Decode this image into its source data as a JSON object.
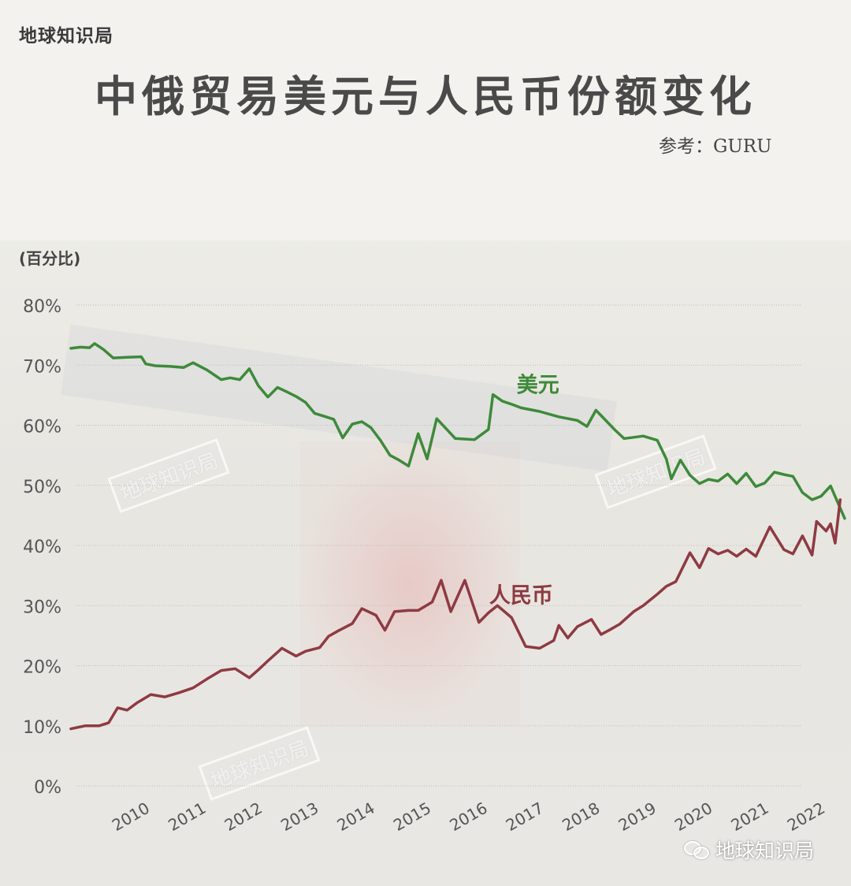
{
  "brand": "地球知识局",
  "title": "中俄贸易美元与人民币份额变化",
  "source": "参考：GURU",
  "watermarks": [
    "地球知识局",
    "地球知识局",
    "地球知识局"
  ],
  "footer_watermark": "地球知识局",
  "colors": {
    "usd": "#3e8a3a",
    "cny": "#8e3a42",
    "axis_text": "#555555",
    "grid": "#bdbdbd"
  },
  "chart_data": {
    "type": "line",
    "ylabel": "(百分比)",
    "ylim": [
      0,
      80
    ],
    "ytick_labels": [
      "0%",
      "10%",
      "20%",
      "30%",
      "40%",
      "50%",
      "60%",
      "70%",
      "80%"
    ],
    "xlim": [
      2009.0,
      2022.75
    ],
    "xtick_labels": [
      "2010",
      "2011",
      "2012",
      "2013",
      "2014",
      "2015",
      "2016",
      "2017",
      "2018",
      "2019",
      "2020",
      "2021",
      "2022"
    ],
    "grid": true,
    "series": [
      {
        "name": "美元",
        "color": "#3e8a3a",
        "x": [
          2009.0,
          2009.17,
          2009.33,
          2009.42,
          2009.58,
          2009.75,
          2010.0,
          2010.25,
          2010.33,
          2010.5,
          2010.75,
          2011.0,
          2011.17,
          2011.42,
          2011.67,
          2011.83,
          2012.0,
          2012.17,
          2012.33,
          2012.5,
          2012.67,
          2012.83,
          2013.0,
          2013.17,
          2013.33,
          2013.5,
          2013.67,
          2013.83,
          2014.0,
          2014.17,
          2014.33,
          2014.5,
          2014.67,
          2014.83,
          2015.0,
          2015.17,
          2015.33,
          2015.5,
          2015.67,
          2015.83,
          2016.17,
          2016.42,
          2016.5,
          2016.67,
          2016.83,
          2017.0,
          2017.33,
          2017.67,
          2018.0,
          2018.17,
          2018.33,
          2018.67,
          2018.83,
          2019.0,
          2019.17,
          2019.42,
          2019.58,
          2019.67,
          2019.83,
          2020.0,
          2020.17,
          2020.33,
          2020.5,
          2020.67,
          2020.83,
          2021.0,
          2021.17,
          2021.33,
          2021.5,
          2021.67,
          2021.83,
          2022.0,
          2022.17,
          2022.33,
          2022.5,
          2022.75
        ],
        "values": [
          72.8,
          73.0,
          72.9,
          73.6,
          72.6,
          71.2,
          71.3,
          71.4,
          70.2,
          69.9,
          69.8,
          69.6,
          70.4,
          69.2,
          67.6,
          67.9,
          67.6,
          69.4,
          66.6,
          64.7,
          66.3,
          65.6,
          64.8,
          63.8,
          62.0,
          61.5,
          61.0,
          57.9,
          60.2,
          60.6,
          59.6,
          57.5,
          55.0,
          54.2,
          53.2,
          58.6,
          54.4,
          61.1,
          59.4,
          57.8,
          57.6,
          59.3,
          65.1,
          64.0,
          63.5,
          62.9,
          62.3,
          61.4,
          60.8,
          59.8,
          62.5,
          59.2,
          57.8,
          58.0,
          58.2,
          57.5,
          54.4,
          51.1,
          54.2,
          51.7,
          50.3,
          51.0,
          50.7,
          51.9,
          50.3,
          52.0,
          49.8,
          50.4,
          52.2,
          51.8,
          51.5,
          48.8,
          47.6,
          48.2,
          49.9,
          44.5
        ]
      },
      {
        "name": "人民币",
        "color": "#8e3a42",
        "x": [
          2009.0,
          2009.25,
          2009.5,
          2009.67,
          2009.83,
          2010.0,
          2010.17,
          2010.42,
          2010.67,
          2010.92,
          2011.17,
          2011.42,
          2011.67,
          2011.92,
          2012.17,
          2012.33,
          2012.5,
          2012.75,
          2013.0,
          2013.17,
          2013.42,
          2013.58,
          2013.75,
          2014.0,
          2014.17,
          2014.42,
          2014.58,
          2014.75,
          2015.0,
          2015.17,
          2015.42,
          2015.58,
          2015.75,
          2016.0,
          2016.25,
          2016.42,
          2016.58,
          2016.83,
          2017.08,
          2017.33,
          2017.58,
          2017.67,
          2017.83,
          2018.0,
          2018.25,
          2018.42,
          2018.58,
          2018.75,
          2019.0,
          2019.17,
          2019.42,
          2019.58,
          2019.75,
          2020.0,
          2020.17,
          2020.33,
          2020.5,
          2020.67,
          2020.83,
          2021.0,
          2021.17,
          2021.42,
          2021.67,
          2021.83,
          2022.0,
          2022.17,
          2022.25,
          2022.42,
          2022.5,
          2022.58,
          2022.67
        ],
        "values": [
          9.5,
          10.0,
          10.0,
          10.5,
          13.0,
          12.6,
          13.8,
          15.2,
          14.8,
          15.5,
          16.3,
          17.8,
          19.2,
          19.5,
          18.0,
          19.3,
          20.8,
          22.9,
          21.6,
          22.4,
          23.0,
          24.9,
          25.8,
          27.0,
          29.5,
          28.4,
          25.9,
          29.0,
          29.2,
          29.2,
          30.6,
          34.2,
          29.0,
          34.2,
          27.2,
          28.8,
          30.0,
          28.0,
          23.2,
          22.9,
          24.2,
          26.7,
          24.6,
          26.5,
          27.7,
          25.2,
          26.0,
          26.9,
          29.0,
          30.0,
          31.9,
          33.2,
          34.0,
          38.8,
          36.3,
          39.5,
          38.6,
          39.2,
          38.2,
          39.4,
          38.2,
          43.1,
          39.3,
          38.6,
          41.6,
          38.4,
          44.0,
          42.4,
          43.6,
          40.4,
          47.6
        ]
      }
    ],
    "series_labels": [
      {
        "text": "美元",
        "x": 2017.3,
        "y": 65.5
      },
      {
        "text": "人民币",
        "x": 2017.0,
        "y": 30.5
      }
    ]
  }
}
